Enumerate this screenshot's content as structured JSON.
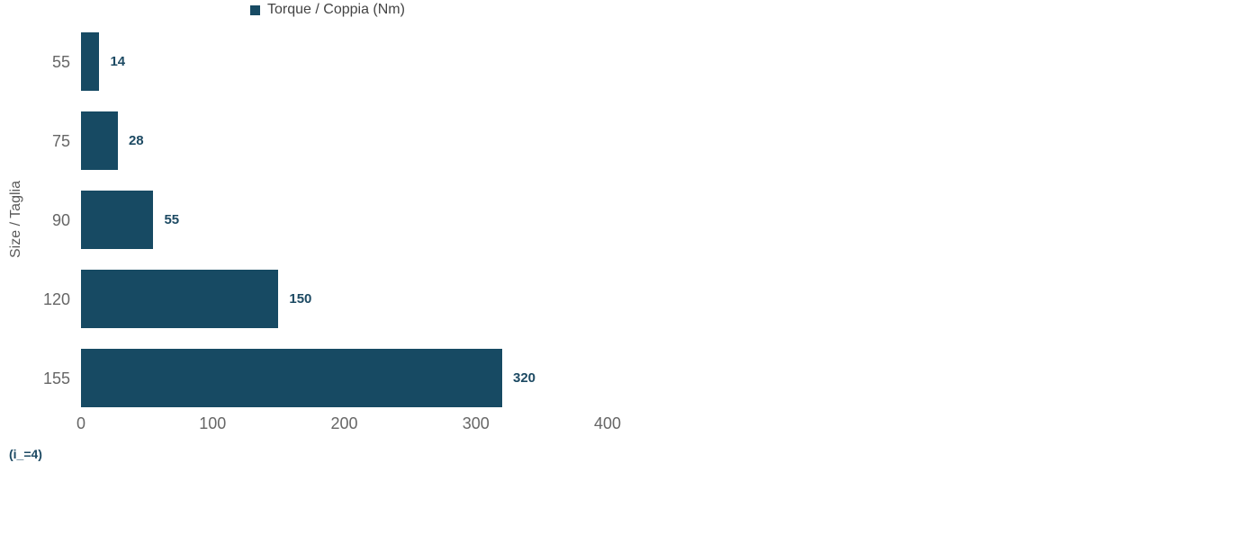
{
  "chart_data": {
    "type": "bar",
    "orientation": "horizontal",
    "title": "",
    "legend": "Torque / Coppia (Nm)",
    "legend_position": "top",
    "ylabel": "Size / Taglia",
    "xlabel": "",
    "categories": [
      "55",
      "75",
      "90",
      "120",
      "155"
    ],
    "values": [
      14,
      28,
      55,
      150,
      320
    ],
    "xlim": [
      0,
      400
    ],
    "xticks": [
      0,
      100,
      200,
      300,
      400
    ],
    "grid": false,
    "colors": {
      "bar": "#174a63",
      "value_label": "#1d4a63",
      "axis_text": "#666666",
      "legend_text": "#444444",
      "background": "#ffffff"
    }
  },
  "footnote": "(i_=4)"
}
